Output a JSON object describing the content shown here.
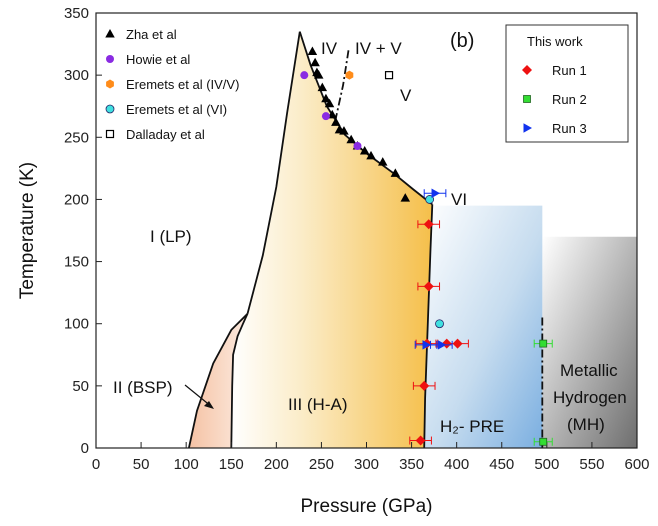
{
  "chart_data": {
    "type": "scatter",
    "panel_label": "(b)",
    "xlabel": "Pressure (GPa)",
    "ylabel": "Temperature (K)",
    "xlim": [
      0,
      600
    ],
    "ylim": [
      0,
      350
    ],
    "x_ticks": [
      0,
      50,
      100,
      150,
      200,
      250,
      300,
      350,
      400,
      450,
      500,
      550,
      600
    ],
    "y_ticks": [
      0,
      50,
      100,
      150,
      200,
      250,
      300,
      350
    ],
    "legend_left": [
      {
        "name": "Zha et al",
        "marker": "triangle-up",
        "color": "#000000"
      },
      {
        "name": "Howie et al",
        "marker": "circle",
        "color": "#8a2be2"
      },
      {
        "name": "Eremets et al (IV/V)",
        "marker": "hexagon",
        "color": "#ff8c1a"
      },
      {
        "name": "Eremets et al (VI)",
        "marker": "circle",
        "color": "#40e0e0"
      },
      {
        "name": "Dalladay et al",
        "marker": "open-square",
        "color": "#000000"
      }
    ],
    "legend_right": {
      "title": "This work",
      "entries": [
        {
          "name": "Run 1",
          "marker": "diamond",
          "color": "#ee1111"
        },
        {
          "name": "Run 2",
          "marker": "square",
          "color": "#33dd33"
        },
        {
          "name": "Run 3",
          "marker": "triangle-right",
          "color": "#1133ee"
        }
      ]
    },
    "region_labels": {
      "lp": "I (LP)",
      "bsp": "II (BSP)",
      "ha": "III (H-A)",
      "pre": "H₂- PRE",
      "iv": "IV",
      "ivv": "IV + V",
      "v": "V",
      "vi": "VI",
      "mh1": "Metallic",
      "mh2": "Hydrogen",
      "mh3": "(MH)"
    },
    "series": [
      {
        "name": "Zha et al",
        "points": [
          [
            240,
            319
          ],
          [
            243,
            310
          ],
          [
            245,
            302
          ],
          [
            247,
            300
          ],
          [
            251,
            290
          ],
          [
            255,
            281
          ],
          [
            259,
            277
          ],
          [
            262,
            268
          ],
          [
            266,
            262
          ],
          [
            270,
            256
          ],
          [
            275,
            255
          ],
          [
            283,
            248
          ],
          [
            290,
            243
          ],
          [
            298,
            239
          ],
          [
            305,
            235
          ],
          [
            318,
            230
          ],
          [
            332,
            221
          ],
          [
            343,
            201
          ]
        ]
      },
      {
        "name": "Howie et al",
        "points": [
          [
            231,
            300
          ],
          [
            255,
            267
          ],
          [
            290,
            243
          ]
        ]
      },
      {
        "name": "Eremets et al (IV/V)",
        "points": [
          [
            281,
            300
          ]
        ]
      },
      {
        "name": "Eremets et al (VI)",
        "points": [
          [
            370,
            200
          ],
          [
            381,
            100
          ]
        ]
      },
      {
        "name": "Dalladay et al",
        "points": [
          [
            325,
            300
          ]
        ]
      },
      {
        "name": "Run 1",
        "points": [
          [
            360,
            6
          ],
          [
            364,
            50
          ],
          [
            367,
            84
          ],
          [
            369,
            130
          ],
          [
            369,
            180
          ],
          [
            389,
            84
          ],
          [
            401,
            84
          ]
        ],
        "xerr": 12
      },
      {
        "name": "Run 2",
        "points": [
          [
            496,
            84
          ],
          [
            496,
            5
          ]
        ],
        "xerr": 10
      },
      {
        "name": "Run 3",
        "points": [
          [
            376,
            205
          ],
          [
            366,
            83
          ],
          [
            383,
            83
          ]
        ],
        "xerr": 12
      }
    ],
    "boundaries": {
      "lp_ha_lower": [
        [
          150,
          0
        ],
        [
          151,
          50
        ],
        [
          152,
          75
        ],
        [
          157,
          90
        ],
        [
          163,
          100
        ],
        [
          168,
          108
        ]
      ],
      "lp_ha_upper": [
        [
          168,
          108
        ],
        [
          185,
          155
        ],
        [
          200,
          210
        ],
        [
          212,
          270
        ],
        [
          226,
          335
        ]
      ],
      "bsp": [
        [
          103,
          0
        ],
        [
          112,
          30
        ],
        [
          130,
          68
        ],
        [
          150,
          95
        ],
        [
          168,
          108
        ]
      ],
      "iv_ha": [
        [
          226,
          335
        ],
        [
          238,
          308
        ],
        [
          256,
          275
        ],
        [
          276,
          252
        ],
        [
          300,
          237
        ],
        [
          330,
          221
        ],
        [
          352,
          208
        ],
        [
          373,
          196
        ]
      ],
      "iv_v_dashdot": [
        [
          280,
          320
        ],
        [
          274,
          292
        ],
        [
          265,
          262
        ]
      ],
      "ha_pre": [
        [
          373,
          196
        ],
        [
          371,
          160
        ],
        [
          369,
          120
        ],
        [
          367,
          80
        ],
        [
          365,
          40
        ],
        [
          364,
          0
        ]
      ],
      "pre_mh_dashdot": [
        [
          495,
          105
        ],
        [
          495,
          0
        ]
      ]
    }
  }
}
